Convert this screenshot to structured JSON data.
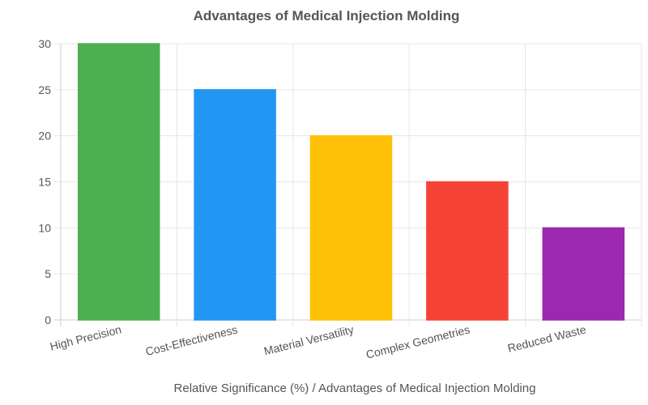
{
  "chart_data": {
    "type": "bar",
    "title": "Advantages of Medical Injection Molding",
    "xlabel": "Relative Significance (%) / Advantages of Medical Injection Molding",
    "ylabel": "",
    "ylim": [
      0,
      30
    ],
    "yticks": [
      0,
      5,
      10,
      15,
      20,
      25,
      30
    ],
    "grid": true,
    "categories": [
      "High Precision",
      "Cost-Effectiveness",
      "Material Versatility",
      "Complex Geometries",
      "Reduced Waste"
    ],
    "values": [
      30,
      25,
      20,
      15,
      10
    ],
    "colors": [
      "#4CAF50",
      "#2196F3",
      "#FFC107",
      "#F44336",
      "#9C27B0"
    ]
  }
}
